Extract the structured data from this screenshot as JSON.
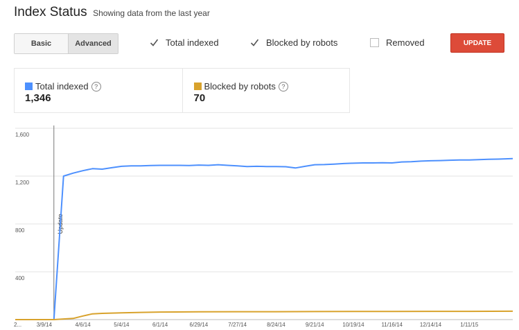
{
  "header": {
    "title": "Index Status",
    "subtitle": "Showing data from the last year"
  },
  "toolbar": {
    "basic_label": "Basic",
    "advanced_label": "Advanced",
    "active_view": "Advanced",
    "checkboxes": [
      {
        "label": "Total indexed",
        "checked": true
      },
      {
        "label": "Blocked by robots",
        "checked": true
      },
      {
        "label": "Removed",
        "checked": false
      }
    ],
    "update_label": "UPDATE"
  },
  "summary": {
    "tiles": [
      {
        "label": "Total indexed",
        "value": "1,346",
        "color": "#4d90fe",
        "help_icon": "question-circle-icon"
      },
      {
        "label": "Blocked by robots",
        "value": "70",
        "color": "#d8a22c",
        "help_icon": "question-circle-icon"
      }
    ]
  },
  "chart_data": {
    "type": "line",
    "title": "",
    "xlabel": "",
    "ylabel": "",
    "ylim": [
      0,
      1600
    ],
    "y_ticks": [
      0,
      400,
      800,
      1200,
      1600
    ],
    "y_tick_labels": [
      "",
      "400",
      "800",
      "1,200",
      "1,600"
    ],
    "grid": true,
    "x_tick_labels": [
      "2...",
      "3/9/14",
      "4/6/14",
      "5/4/14",
      "6/1/14",
      "6/29/14",
      "7/27/14",
      "8/24/14",
      "9/21/14",
      "10/19/14",
      "11/16/14",
      "12/14/14",
      "1/11/15"
    ],
    "x_ticks": [
      0,
      3,
      7,
      11,
      15,
      19,
      23,
      27,
      31,
      35,
      39,
      43,
      47
    ],
    "x_range": [
      0,
      51.5
    ],
    "annotation": {
      "label": "Update",
      "x": 4
    },
    "series": [
      {
        "name": "Total indexed",
        "color": "#4d90fe",
        "x": [
          0,
          4,
          5,
          6,
          7,
          8,
          9,
          10,
          11,
          12,
          13,
          14,
          15,
          16,
          17,
          18,
          19,
          20,
          21,
          22,
          23,
          24,
          25,
          26,
          27,
          28,
          29,
          30,
          31,
          32,
          33,
          34,
          35,
          36,
          37,
          38,
          39,
          40,
          41,
          42,
          43,
          44,
          45,
          46,
          47,
          48,
          49,
          50,
          51.5
        ],
        "values": [
          0,
          0,
          1200,
          1225,
          1245,
          1262,
          1258,
          1270,
          1282,
          1285,
          1286,
          1288,
          1290,
          1290,
          1290,
          1288,
          1292,
          1290,
          1295,
          1290,
          1285,
          1280,
          1282,
          1280,
          1280,
          1278,
          1268,
          1282,
          1295,
          1296,
          1300,
          1305,
          1308,
          1310,
          1310,
          1312,
          1310,
          1318,
          1320,
          1325,
          1328,
          1330,
          1333,
          1335,
          1335,
          1338,
          1340,
          1342,
          1346
        ]
      },
      {
        "name": "Blocked by robots",
        "color": "#d8a22c",
        "x": [
          0,
          4,
          5,
          6,
          7,
          8,
          9,
          11,
          13,
          15,
          19,
          23,
          27,
          31,
          35,
          39,
          43,
          47,
          51.5
        ],
        "values": [
          0,
          0,
          5,
          10,
          30,
          48,
          52,
          56,
          60,
          63,
          65,
          66,
          66,
          67,
          68,
          68,
          69,
          69,
          70
        ]
      }
    ]
  }
}
